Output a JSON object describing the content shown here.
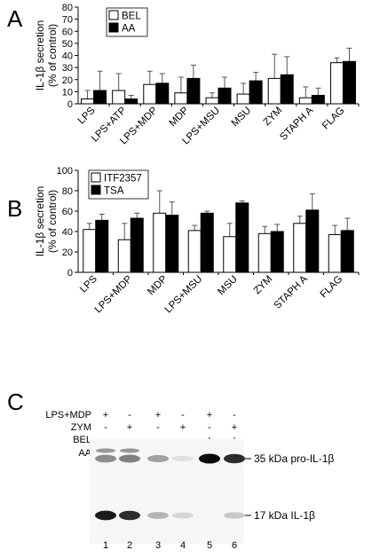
{
  "chart_data": [
    {
      "type": "bar",
      "panel": "A",
      "ylabel_line1": "IL-1β secretion",
      "ylabel_line2": "(% of control)",
      "ylim": [
        0,
        80
      ],
      "yticks": [
        0,
        10,
        20,
        30,
        40,
        50,
        60,
        70,
        80
      ],
      "categories": [
        "LPS",
        "LPS+ATP",
        "LPS+MDP",
        "MDP",
        "LPS+MSU",
        "MSU",
        "ZYM",
        "STAPH A",
        "FLAG"
      ],
      "series": [
        {
          "name": "BEL",
          "fill": "#ffffff",
          "values": [
            4,
            11,
            16,
            9,
            5,
            8,
            21,
            5,
            34
          ],
          "errors": [
            7,
            14,
            11,
            13,
            4,
            9,
            20,
            9,
            4
          ]
        },
        {
          "name": "AA",
          "fill": "#000000",
          "values": [
            11,
            4,
            17,
            21,
            13,
            19,
            24,
            7,
            35
          ],
          "errors": [
            16,
            3,
            8,
            11,
            9,
            7,
            15,
            6,
            11
          ]
        }
      ],
      "legend_position": "top-left"
    },
    {
      "type": "bar",
      "panel": "B",
      "ylabel_line1": "IL-1β secretion",
      "ylabel_line2": "(% of control)",
      "ylim": [
        0,
        100
      ],
      "yticks": [
        0,
        20,
        40,
        60,
        80,
        100
      ],
      "categories": [
        "LPS",
        "LPS+MDP",
        "MDP",
        "LPS+MSU",
        "MSU",
        "ZYM",
        "STAPH A",
        "FLAG"
      ],
      "series": [
        {
          "name": "ITF2357",
          "fill": "#ffffff",
          "values": [
            42,
            32,
            58,
            41,
            35,
            38,
            48,
            37
          ],
          "errors": [
            6,
            16,
            22,
            5,
            13,
            7,
            7,
            9
          ]
        },
        {
          "name": "TSA",
          "fill": "#000000",
          "values": [
            51,
            53,
            56,
            58,
            68,
            40,
            61,
            41
          ],
          "errors": [
            6,
            5,
            13,
            2,
            2,
            7,
            16,
            12
          ]
        }
      ],
      "legend_position": "top-left"
    }
  ],
  "blot": {
    "panel": "C",
    "treatments": [
      {
        "label": "LPS+MDP",
        "signs": [
          "+",
          "-",
          "+",
          "-",
          "+",
          "-"
        ]
      },
      {
        "label": "ZYM",
        "signs": [
          "-",
          "+",
          "-",
          "+",
          "-",
          "+"
        ]
      },
      {
        "label": "BEL",
        "signs": [
          "-",
          "-",
          "-",
          "-",
          "+",
          "+"
        ]
      },
      {
        "label": "AA",
        "signs": [
          "-",
          "-",
          "+",
          "+",
          "-",
          "-"
        ]
      }
    ],
    "lanes": [
      "1",
      "2",
      "3",
      "4",
      "5",
      "6"
    ],
    "bands": [
      {
        "label": "35 kDa pro-IL-1β",
        "intensity": [
          0.55,
          0.6,
          0.45,
          0.05,
          1.0,
          0.9
        ]
      },
      {
        "label": "17 kDa IL-1β",
        "intensity": [
          0.95,
          0.9,
          0.35,
          0.15,
          0.0,
          0.25
        ]
      }
    ]
  }
}
